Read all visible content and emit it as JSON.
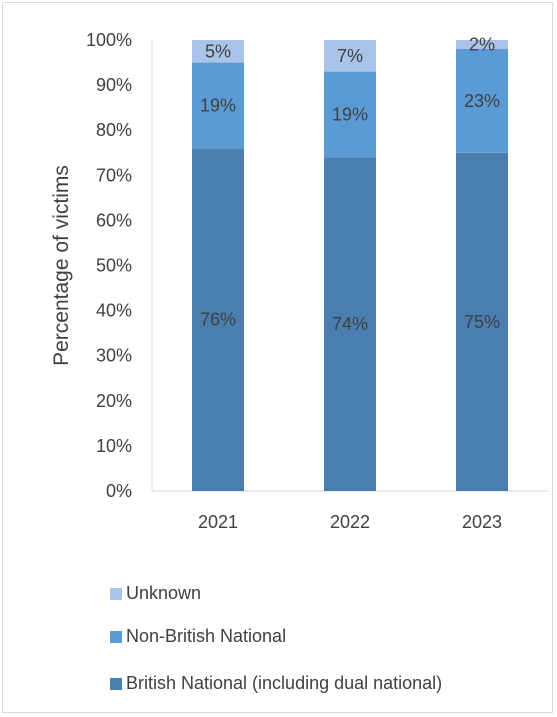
{
  "chart_data": {
    "type": "bar",
    "stacked": true,
    "categories": [
      "2021",
      "2022",
      "2023"
    ],
    "series": [
      {
        "name": "British National (including dual national)",
        "values": [
          76,
          74,
          75
        ],
        "labels": [
          "76%",
          "74%",
          "75%"
        ],
        "color": "#4a7eb0"
      },
      {
        "name": "Non-British National",
        "values": [
          19,
          19,
          23
        ],
        "labels": [
          "19%",
          "19%",
          "23%"
        ],
        "color": "#5b9bd5"
      },
      {
        "name": "Unknown",
        "values": [
          5,
          7,
          2
        ],
        "labels": [
          "5%",
          "7%",
          "2%"
        ],
        "color": "#a9c4e8"
      }
    ],
    "ylabel": "Percentage of victims",
    "ylim": [
      0,
      100
    ],
    "yticks": [
      "0%",
      "10%",
      "20%",
      "30%",
      "40%",
      "50%",
      "60%",
      "70%",
      "80%",
      "90%",
      "100%"
    ],
    "grid": false,
    "legend_position": "bottom"
  }
}
